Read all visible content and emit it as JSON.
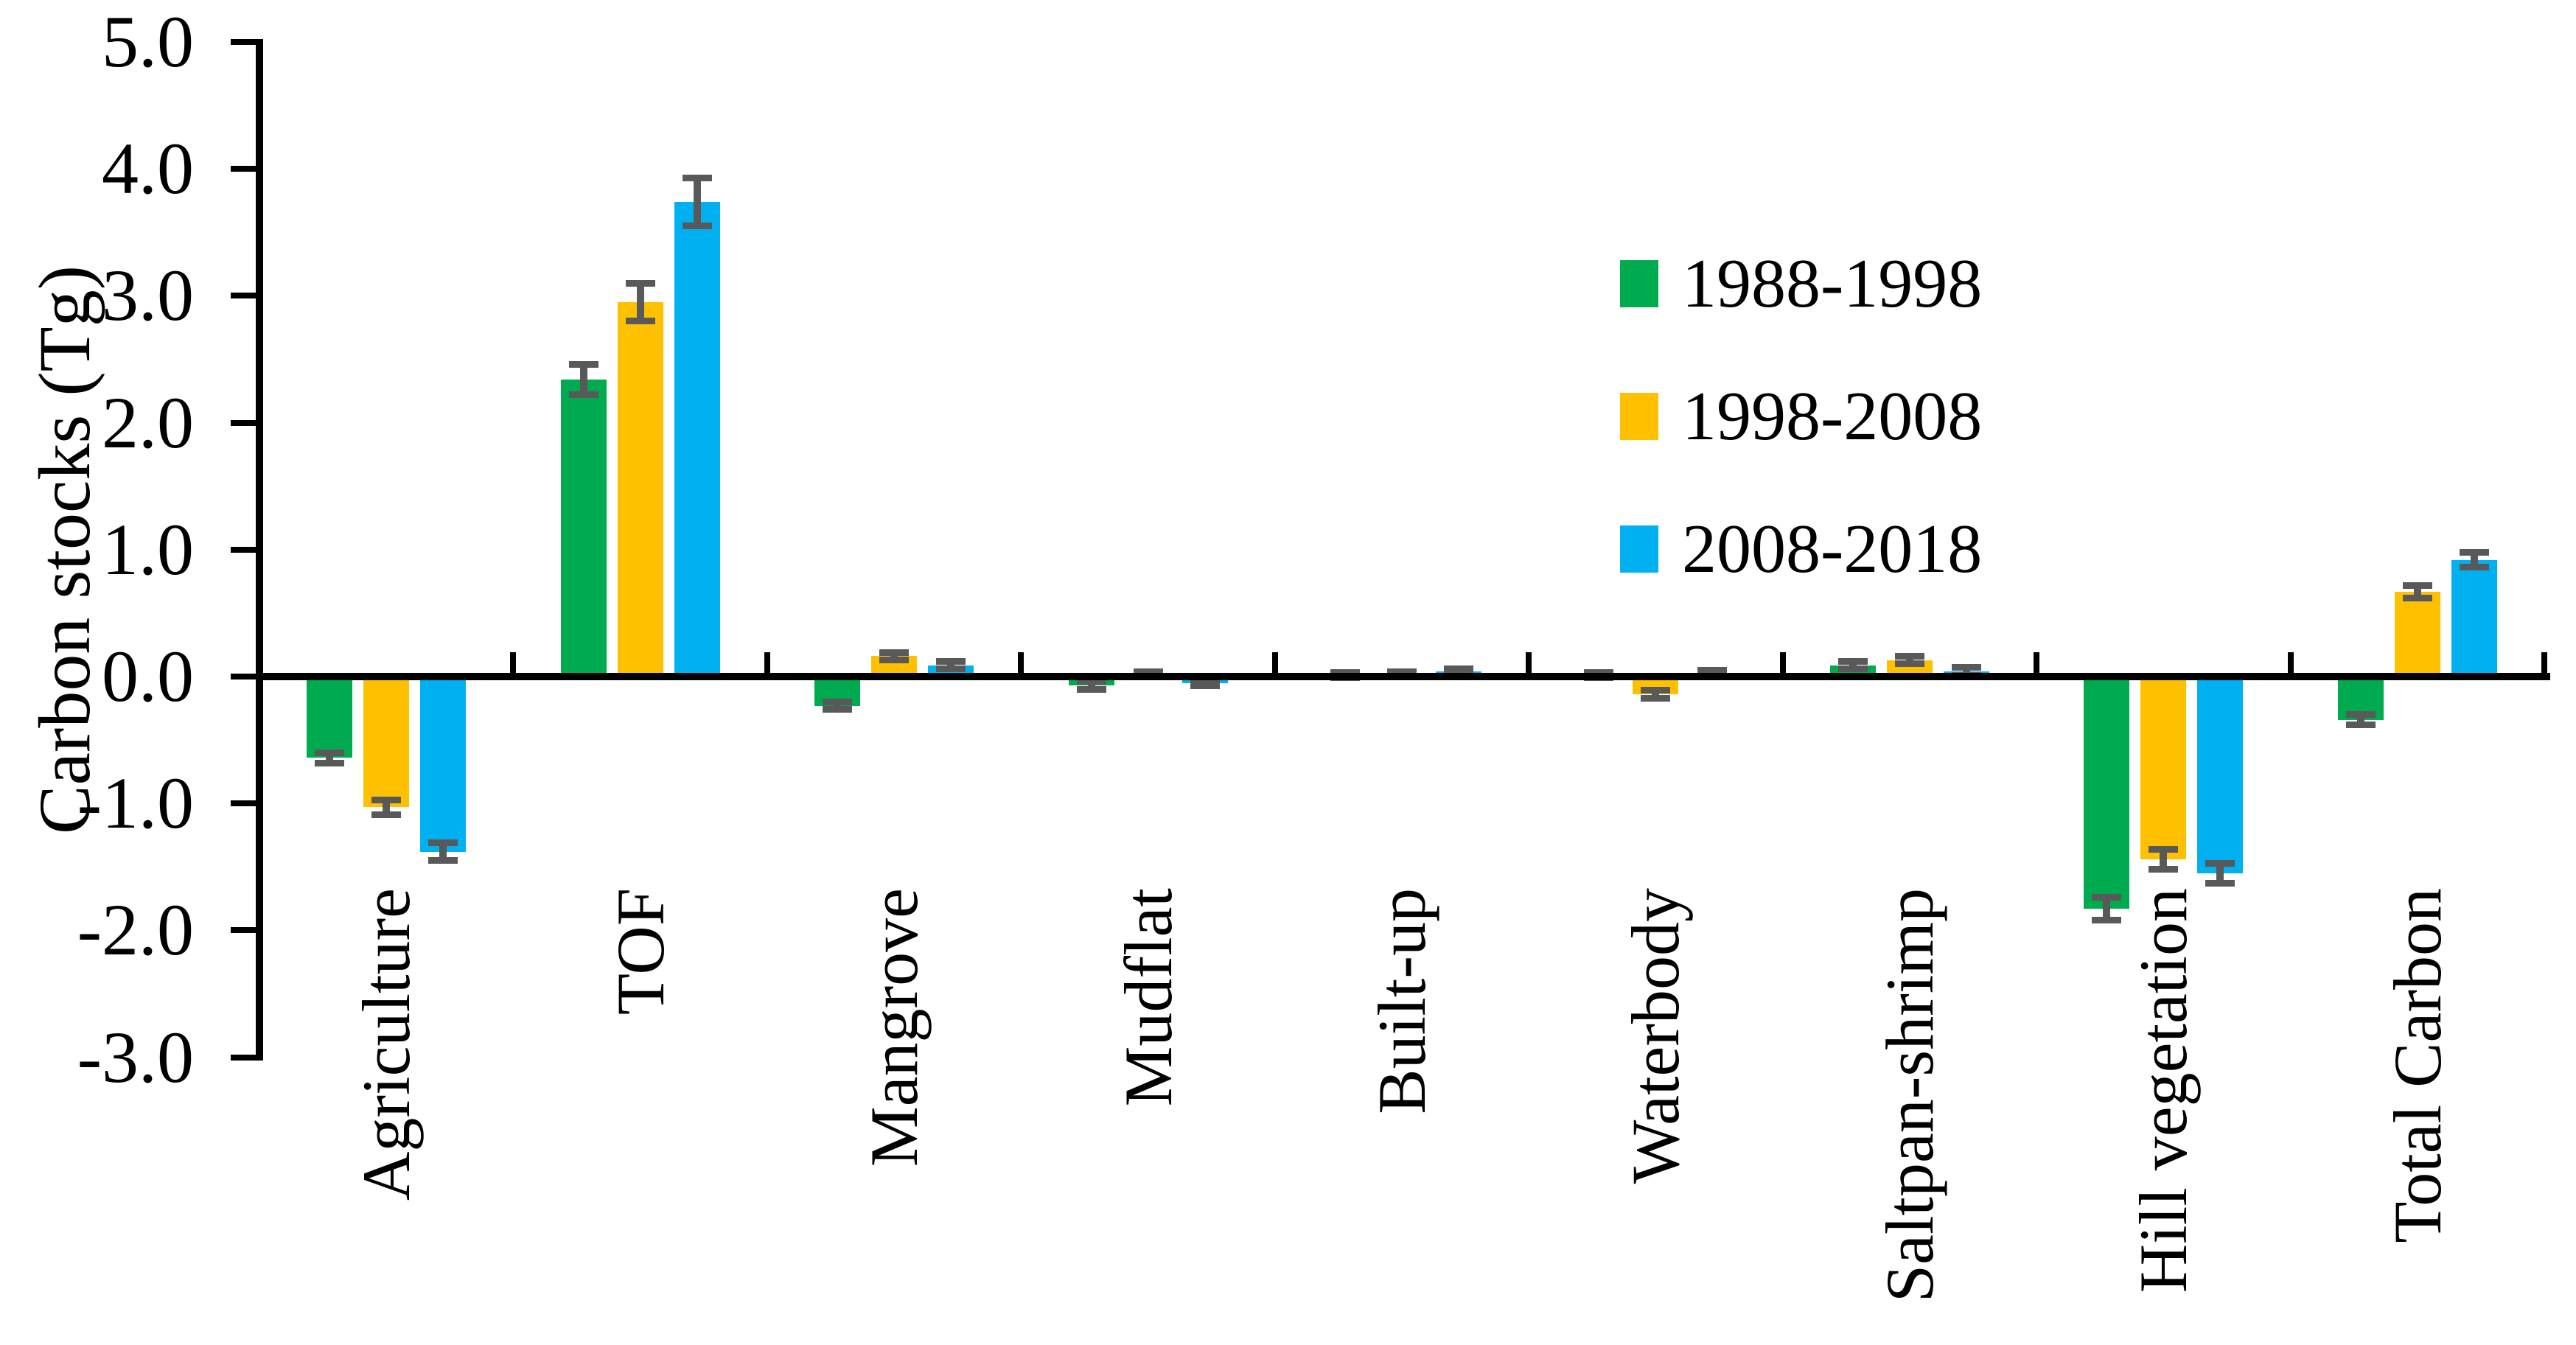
{
  "chart_data": {
    "type": "bar",
    "title": "",
    "ylabel": "Carbon stocks (Tg)",
    "xlabel": "",
    "ylim": [
      -3.0,
      5.0
    ],
    "ytick_step": 1.0,
    "ytick_labels": [
      "5.0",
      "4.0",
      "3.0",
      "2.0",
      "1.0",
      "0.0",
      "-1.0",
      "-2.0",
      "-3.0"
    ],
    "grid": false,
    "legend_position": "inside-upper-right",
    "categories": [
      "Agriculture",
      "TOF",
      "Mangrove",
      "Mudflat",
      "Built-up",
      "Waterbody",
      "Saltpan-shrimp",
      "Hill vegetation",
      "Total Carbon"
    ],
    "series": [
      {
        "name": "1988-1998",
        "color": "#00AB50",
        "values": [
          -0.64,
          2.34,
          -0.23,
          -0.07,
          0.01,
          0.01,
          0.09,
          -1.83,
          -0.34
        ],
        "errors": [
          0.04,
          0.12,
          0.03,
          0.03,
          0.02,
          0.02,
          0.03,
          0.09,
          0.04
        ]
      },
      {
        "name": "1998-2008",
        "color": "#FFC000",
        "values": [
          -1.03,
          2.95,
          0.16,
          0.02,
          0.02,
          -0.14,
          0.13,
          -1.44,
          0.67
        ],
        "errors": [
          0.06,
          0.15,
          0.03,
          0.02,
          0.02,
          0.03,
          0.03,
          0.08,
          0.05
        ]
      },
      {
        "name": "2008-2018",
        "color": "#00B0F0",
        "values": [
          -1.38,
          3.74,
          0.09,
          -0.05,
          0.04,
          0.03,
          0.04,
          -1.55,
          0.92
        ],
        "errors": [
          0.07,
          0.19,
          0.03,
          0.02,
          0.02,
          0.02,
          0.03,
          0.08,
          0.06
        ]
      }
    ],
    "error_bar_color": "#595959",
    "axis_color": "#000000"
  }
}
